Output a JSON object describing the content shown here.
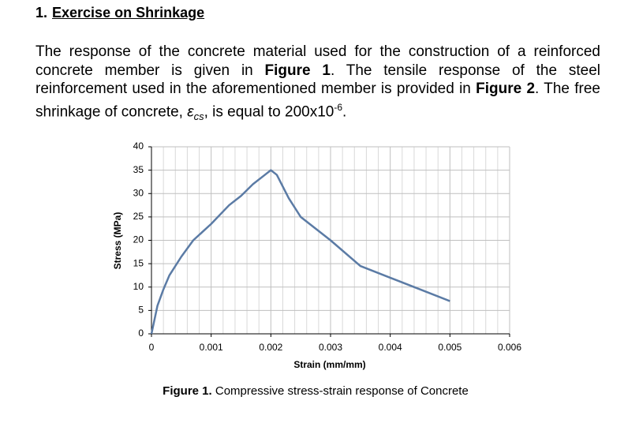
{
  "header": {
    "number": "1.",
    "title": "Exercise on Shrinkage"
  },
  "paragraph": {
    "parts": [
      "The response of the concrete material used for the construction of a reinforced concrete member is given in ",
      "Figure 1",
      ". The tensile response of the steel reinforcement used in the aforementioned member is provided in ",
      "Figure 2",
      ". The free shrinkage of concrete, ",
      "ε",
      "cs",
      ", is equal to 200x10",
      "-6",
      "."
    ]
  },
  "chart_data": {
    "type": "line",
    "x_label": "Strain (mm/mm)",
    "y_label": "Stress (MPa)",
    "x": [
      0,
      5e-05,
      0.0001,
      0.0002,
      0.0003,
      0.0005,
      0.0007,
      0.001,
      0.0013,
      0.0015,
      0.0017,
      0.0019,
      0.002,
      0.0021,
      0.0023,
      0.0025,
      0.003,
      0.0035,
      0.004,
      0.0045,
      0.005
    ],
    "values": [
      0,
      3,
      6,
      9.5,
      12.5,
      16.5,
      20,
      23.5,
      27.5,
      29.5,
      32,
      34,
      35,
      34,
      29,
      25,
      20,
      14.5,
      12,
      9.5,
      7
    ],
    "color": "#5b7ba5",
    "xlim": [
      0,
      0.006
    ],
    "xticks": [
      0,
      0.001,
      0.002,
      0.003,
      0.004,
      0.005,
      0.006
    ],
    "ylim": [
      0,
      40
    ],
    "yticks": [
      0,
      5,
      10,
      15,
      20,
      25,
      30,
      35,
      40
    ],
    "grid": true
  },
  "caption": {
    "label": "Figure 1.",
    "text": " Compressive stress-strain response of Concrete"
  }
}
